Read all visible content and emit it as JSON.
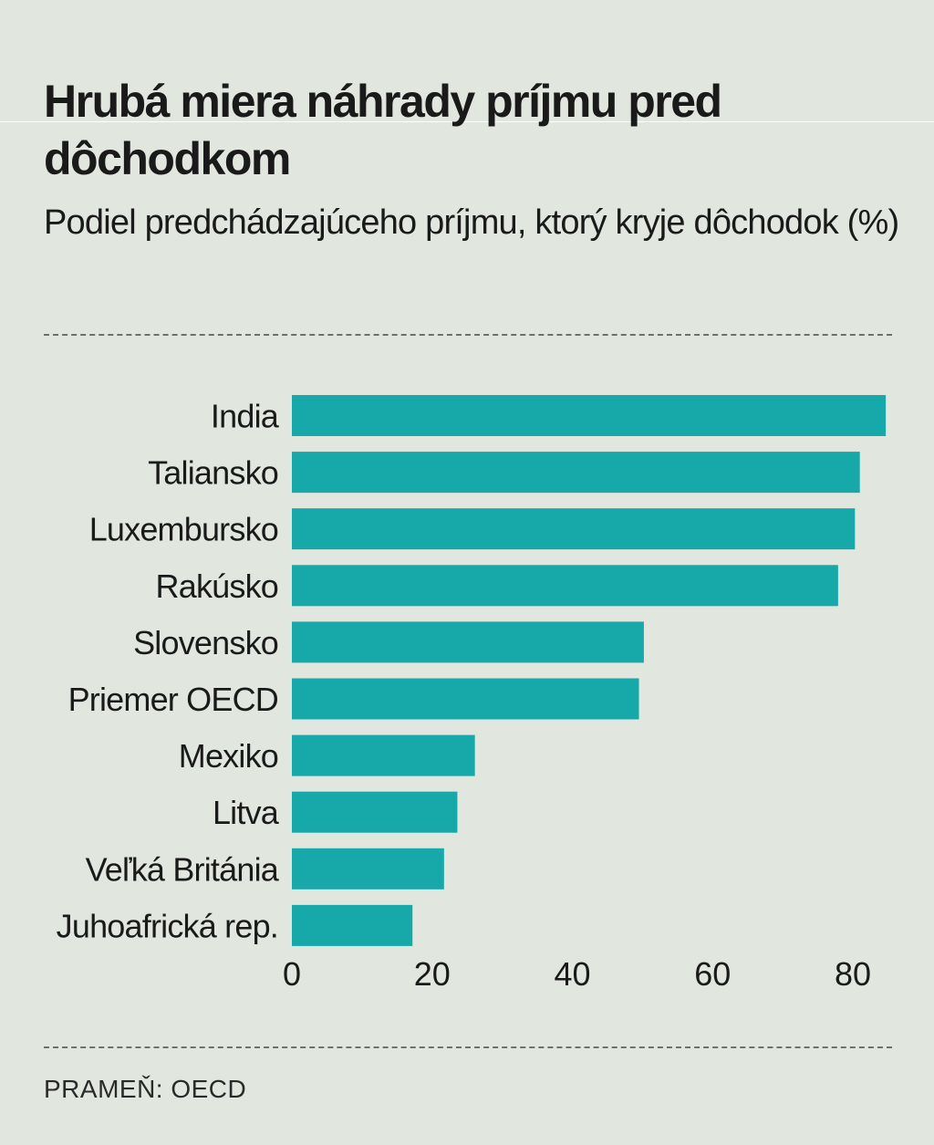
{
  "title": "Hrubá miera náhrady príjmu pred dôchodkom",
  "subtitle": "Podiel predchádzajúceho príjmu, ktorý kryje dôchodok (%)",
  "source": "PRAMEŇ: OECD",
  "colors": {
    "background": "#e1e6df",
    "bar": "#17a8aa",
    "text": "#1a1a1a"
  },
  "chart_data": {
    "type": "bar",
    "orientation": "horizontal",
    "categories": [
      "India",
      "Taliansko",
      "Luxembursko",
      "Rakúsko",
      "Slovensko",
      "Priemer OECD",
      "Mexiko",
      "Litva",
      "Veľká Británia",
      "Juhoafrická rep."
    ],
    "values": [
      84.7,
      81.0,
      80.3,
      77.9,
      50.2,
      49.5,
      26.1,
      23.6,
      21.7,
      17.2
    ],
    "xticks": [
      0,
      20,
      40,
      60,
      80
    ],
    "xlim": [
      0,
      85
    ],
    "grid": false
  }
}
